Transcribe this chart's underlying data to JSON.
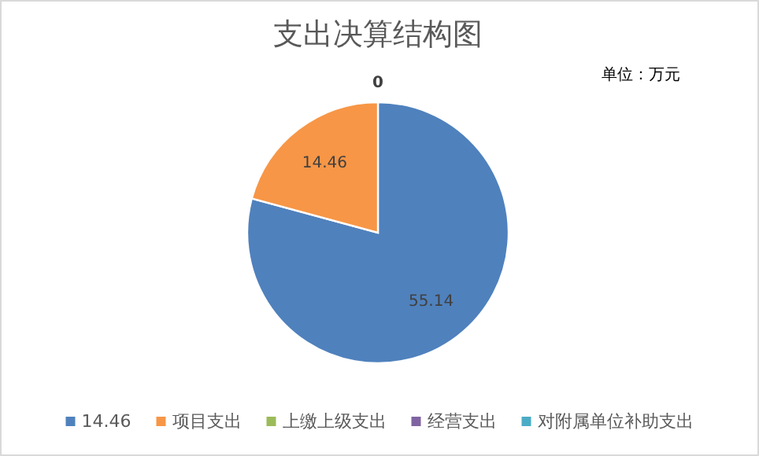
{
  "chart_data": {
    "type": "pie",
    "title": "支出决算结构图",
    "annotations": [
      "单位：万元"
    ],
    "categories": [
      "14.46",
      "项目支出",
      "上缴上级支出",
      "经营支出",
      "对附属单位补助支出"
    ],
    "values": [
      55.14,
      14.46,
      0,
      0,
      0
    ],
    "colors": [
      "#4f81bd",
      "#f79646",
      "#9bbb59",
      "#8064a2",
      "#4bacc6"
    ],
    "value_labels": [
      "55.14",
      "14.46",
      "0",
      null,
      null
    ],
    "legend": "bottom"
  }
}
